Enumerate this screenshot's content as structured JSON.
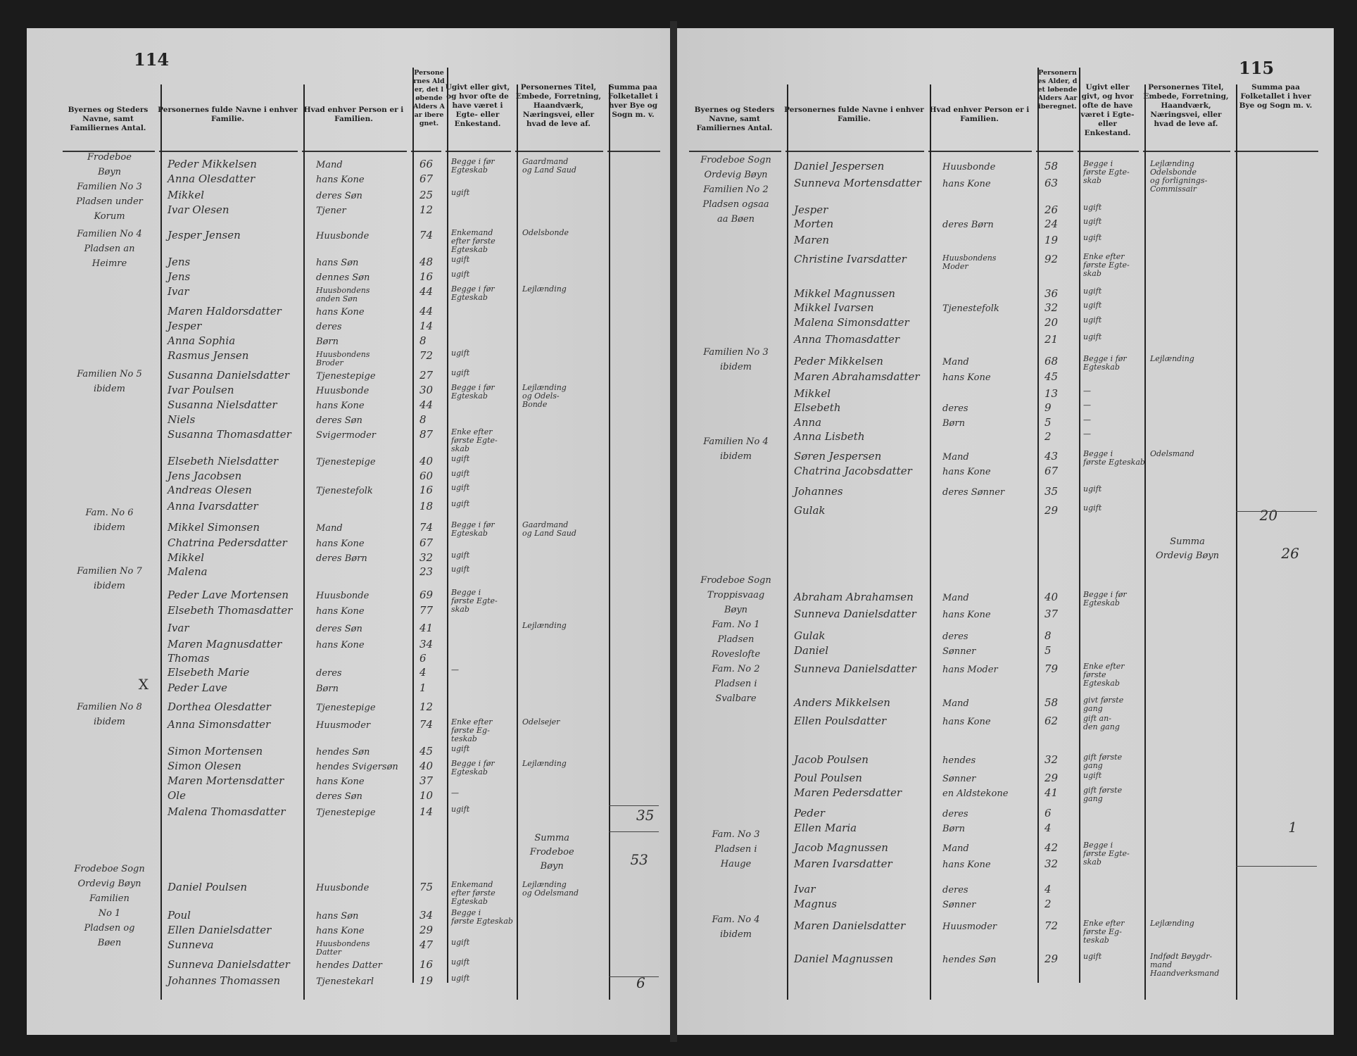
{
  "headers": [
    "Byernes og Steders Navne, samt Familiernes Antal.",
    "Personernes fulde Navne i enhver Familie.",
    "Hvad enhver Person er i Familien.",
    "Personernes Alder, det løbende Alders Aar iberegnet.",
    "Ugivt eller givt, og hvor ofte de have været i Egte- eller Enkestand.",
    "Personernes Titel, Embede, Forretning, Haandværk, Næringsvei, eller hvad de leve af.",
    "Summa paa Folketallet i hver Bye og Sogn m. v."
  ],
  "pages": [
    {
      "page_number": "114",
      "places": [
        "Frodeboe\nBøyn\nFamilien No 3\nPladsen under\nKorum",
        "Familien No 4\nPladsen an\nHeimre",
        "Familien No 5\nibidem",
        "Fam. No 6\nibidem",
        "Familien No 7\nibidem",
        "Familien No 8\nibidem",
        "Frodeboe Sogn\nOrdevig Bøyn\nFamilien\nNo 1\nPladsen og\nBøen"
      ],
      "rows": [
        {
          "name": "Peder Mikkelsen",
          "relation": "Mand",
          "age": "66",
          "status": "Begge i før\nEgteskab",
          "occupation": "Gaardmand\nog Land Saud"
        },
        {
          "name": "Anna Olesdatter",
          "relation": "hans Kone",
          "age": "67",
          "status": "",
          "occupation": ""
        },
        {
          "name": "Mikkel",
          "relation": "deres Søn",
          "age": "25",
          "status": "ugift",
          "occupation": ""
        },
        {
          "name": "Ivar Olesen",
          "relation": "Tjener",
          "age": "12",
          "status": "",
          "occupation": ""
        },
        {
          "name": "Jesper Jensen",
          "relation": "Huusbonde",
          "age": "74",
          "status": "Enkemand\nefter første\nEgteskab",
          "occupation": "Odelsbonde"
        },
        {
          "name": "Jens",
          "relation": "hans Søn",
          "age": "48",
          "status": "ugift",
          "occupation": ""
        },
        {
          "name": "Jens",
          "relation": "dennes Søn",
          "age": "16",
          "status": "ugift",
          "occupation": ""
        },
        {
          "name": "Ivar",
          "relation": "Huusbondens\nanden Søn",
          "age": "44",
          "status": "Begge i før\nEgteskab",
          "occupation": "Lejlænding"
        },
        {
          "name": "Maren Haldorsdatter",
          "relation": "hans Kone",
          "age": "44",
          "status": "",
          "occupation": ""
        },
        {
          "name": "Jesper",
          "relation": "deres",
          "age": "14",
          "status": "",
          "occupation": ""
        },
        {
          "name": "Anna Sophia",
          "relation": "Børn",
          "age": "8",
          "status": "",
          "occupation": ""
        },
        {
          "name": "Rasmus Jensen",
          "relation": "Huusbondens\nBroder",
          "age": "72",
          "status": "ugift",
          "occupation": ""
        },
        {
          "name": "Susanna Danielsdatter",
          "relation": "Tjenestepige",
          "age": "27",
          "status": "ugift",
          "occupation": ""
        },
        {
          "name": "Ivar Poulsen",
          "relation": "Huusbonde",
          "age": "30",
          "status": "Begge i før\nEgteskab",
          "occupation": "Lejlænding\nog Odels-\nBonde"
        },
        {
          "name": "Susanna Nielsdatter",
          "relation": "hans Kone",
          "age": "44",
          "status": "",
          "occupation": ""
        },
        {
          "name": "Niels",
          "relation": "deres Søn",
          "age": "8",
          "status": "",
          "occupation": ""
        },
        {
          "name": "Susanna Thomasdatter",
          "relation": "Svigermoder",
          "age": "87",
          "status": "Enke efter\nførste Egte-\nskab",
          "occupation": ""
        },
        {
          "name": "Elsebeth Nielsdatter",
          "relation": "Tjenestepige",
          "age": "40",
          "status": "ugift",
          "occupation": ""
        },
        {
          "name": "Jens Jacobsen",
          "relation": "",
          "age": "60",
          "status": "ugift",
          "occupation": ""
        },
        {
          "name": "Andreas Olesen",
          "relation": "Tjenestefolk",
          "age": "16",
          "status": "ugift",
          "occupation": ""
        },
        {
          "name": "Anna Ivarsdatter",
          "relation": "",
          "age": "18",
          "status": "ugift",
          "occupation": ""
        },
        {
          "name": "Mikkel Simonsen",
          "relation": "Mand",
          "age": "74",
          "status": "Begge i før\nEgteskab",
          "occupation": "Gaardmand\nog Land Saud"
        },
        {
          "name": "Chatrina Pedersdatter",
          "relation": "hans Kone",
          "age": "67",
          "status": "",
          "occupation": ""
        },
        {
          "name": "Mikkel",
          "relation": "deres Børn",
          "age": "32",
          "status": "ugift",
          "occupation": ""
        },
        {
          "name": "Malena",
          "relation": "",
          "age": "23",
          "status": "ugift",
          "occupation": ""
        },
        {
          "name": "Peder Lave Mortensen",
          "relation": "Huusbonde",
          "age": "69",
          "status": "Begge i\nførste Egte-\nskab",
          "occupation": ""
        },
        {
          "name": "Elsebeth Thomasdatter",
          "relation": "hans Kone",
          "age": "77",
          "status": "",
          "occupation": ""
        },
        {
          "name": "Ivar",
          "relation": "deres Søn",
          "age": "41",
          "status": "",
          "occupation": "Lejlænding"
        },
        {
          "name": "Maren Magnusdatter",
          "relation": "hans Kone",
          "age": "34",
          "status": "",
          "occupation": ""
        },
        {
          "name": "Thomas",
          "relation": "",
          "age": "6",
          "status": "",
          "occupation": ""
        },
        {
          "name": "Elsebeth Marie",
          "relation": "deres",
          "age": "4",
          "status": "—",
          "occupation": ""
        },
        {
          "name": "Peder Lave",
          "relation": "Børn",
          "age": "1",
          "status": "",
          "occupation": ""
        },
        {
          "name": "Dorthea Olesdatter",
          "relation": "Tjenestepige",
          "age": "12",
          "status": "",
          "occupation": ""
        },
        {
          "name": "Anna Simonsdatter",
          "relation": "Huusmoder",
          "age": "74",
          "status": "Enke efter\nførste Eg-\nteskab",
          "occupation": "Odelsejer"
        },
        {
          "name": "Simon Mortensen",
          "relation": "hendes Søn",
          "age": "45",
          "status": "ugift",
          "occupation": ""
        },
        {
          "name": "Simon Olesen",
          "relation": "hendes Svigersøn",
          "age": "40",
          "status": "Begge i før\nEgteskab",
          "occupation": "Lejlænding"
        },
        {
          "name": "Maren Mortensdatter",
          "relation": "hans Kone",
          "age": "37",
          "status": "",
          "occupation": ""
        },
        {
          "name": "Ole",
          "relation": "deres Søn",
          "age": "10",
          "status": "—",
          "occupation": ""
        },
        {
          "name": "Malena Thomasdatter",
          "relation": "Tjenestepige",
          "age": "14",
          "status": "ugift",
          "occupation": ""
        },
        {
          "name": "Daniel Poulsen",
          "relation": "Huusbonde",
          "age": "75",
          "status": "Enkemand\nefter første\nEgteskab",
          "occupation": "Lejlænding\nog Odelsmand"
        },
        {
          "name": "Poul",
          "relation": "hans Søn",
          "age": "34",
          "status": "Begge i\nførste Egteskab",
          "occupation": ""
        },
        {
          "name": "Ellen Danielsdatter",
          "relation": "hans Kone",
          "age": "29",
          "status": "",
          "occupation": ""
        },
        {
          "name": "Sunneva",
          "relation": "Huusbondens\nDatter",
          "age": "47",
          "status": "ugift",
          "occupation": ""
        },
        {
          "name": "Sunneva Danielsdatter",
          "relation": "hendes Datter",
          "age": "16",
          "status": "ugift",
          "occupation": ""
        },
        {
          "name": "Johannes Thomassen",
          "relation": "Tjenestekarl",
          "age": "19",
          "status": "ugift",
          "occupation": ""
        }
      ],
      "totals": [
        "35",
        "Summa\nFrodeboe\nBøyn",
        "53",
        "6"
      ],
      "marks": [
        "X"
      ]
    },
    {
      "page_number": "115",
      "places": [
        "Frodeboe Sogn\nOrdevig Bøyn\nFamilien No 2\nPladsen ogsaa\naa Bøen",
        "Familien No 3\nibidem",
        "Familien No 4\nibidem",
        "Frodeboe Sogn\nTroppisvaag\nBøyn\nFam. No 1\nPladsen\nRoveslofte\nFam. No 2\nPladsen i\nSvalbare",
        "Fam. No 3\nPladsen i\nHauge",
        "Fam. No 4\nibidem"
      ],
      "rows": [
        {
          "name": "Daniel Jespersen",
          "relation": "Huusbonde",
          "age": "58",
          "status": "Begge i\nførste Egte-\nskab",
          "occupation": "Lejlænding\nOdelsbonde\nog forlignings-\nCommissair"
        },
        {
          "name": "Sunneva Mortensdatter",
          "relation": "hans Kone",
          "age": "63",
          "status": "",
          "occupation": ""
        },
        {
          "name": "Jesper",
          "relation": "",
          "age": "26",
          "status": "ugift",
          "occupation": ""
        },
        {
          "name": "Morten",
          "relation": "deres Børn",
          "age": "24",
          "status": "ugift",
          "occupation": ""
        },
        {
          "name": "Maren",
          "relation": "",
          "age": "19",
          "status": "ugift",
          "occupation": ""
        },
        {
          "name": "Christine Ivarsdatter",
          "relation": "Huusbondens\nModer",
          "age": "92",
          "status": "Enke efter\nførste Egte-\nskab",
          "occupation": ""
        },
        {
          "name": "Mikkel Magnussen",
          "relation": "",
          "age": "36",
          "status": "ugift",
          "occupation": ""
        },
        {
          "name": "Mikkel Ivarsen",
          "relation": "Tjenestefolk",
          "age": "32",
          "status": "ugift",
          "occupation": ""
        },
        {
          "name": "Malena Simonsdatter",
          "relation": "",
          "age": "20",
          "status": "ugift",
          "occupation": ""
        },
        {
          "name": "Anna Thomasdatter",
          "relation": "",
          "age": "21",
          "status": "ugift",
          "occupation": ""
        },
        {
          "name": "Peder Mikkelsen",
          "relation": "Mand",
          "age": "68",
          "status": "Begge i før\nEgteskab",
          "occupation": "Lejlænding"
        },
        {
          "name": "Maren Abrahamsdatter",
          "relation": "hans Kone",
          "age": "45",
          "status": "",
          "occupation": ""
        },
        {
          "name": "Mikkel",
          "relation": "",
          "age": "13",
          "status": "—",
          "occupation": ""
        },
        {
          "name": "Elsebeth",
          "relation": "deres",
          "age": "9",
          "status": "—",
          "occupation": ""
        },
        {
          "name": "Anna",
          "relation": "Børn",
          "age": "5",
          "status": "—",
          "occupation": ""
        },
        {
          "name": "Anna Lisbeth",
          "relation": "",
          "age": "2",
          "status": "—",
          "occupation": ""
        },
        {
          "name": "Søren Jespersen",
          "relation": "Mand",
          "age": "43",
          "status": "Begge i\nførste Egteskab",
          "occupation": "Odelsmand"
        },
        {
          "name": "Chatrina Jacobsdatter",
          "relation": "hans Kone",
          "age": "67",
          "status": "",
          "occupation": ""
        },
        {
          "name": "Johannes",
          "relation": "deres Sønner",
          "age": "35",
          "status": "ugift",
          "occupation": ""
        },
        {
          "name": "Gulak",
          "relation": "",
          "age": "29",
          "status": "ugift",
          "occupation": ""
        },
        {
          "name": "Abraham Abrahamsen",
          "relation": "Mand",
          "age": "40",
          "status": "Begge i før\nEgteskab",
          "occupation": ""
        },
        {
          "name": "Sunneva Danielsdatter",
          "relation": "hans Kone",
          "age": "37",
          "status": "",
          "occupation": ""
        },
        {
          "name": "Gulak",
          "relation": "deres",
          "age": "8",
          "status": "",
          "occupation": ""
        },
        {
          "name": "Daniel",
          "relation": "Sønner",
          "age": "5",
          "status": "",
          "occupation": ""
        },
        {
          "name": "Sunneva Danielsdatter",
          "relation": "hans Moder",
          "age": "79",
          "status": "Enke efter\nførste\nEgteskab",
          "occupation": ""
        },
        {
          "name": "Anders Mikkelsen",
          "relation": "Mand",
          "age": "58",
          "status": "givt første\ngang",
          "occupation": ""
        },
        {
          "name": "Ellen Poulsdatter",
          "relation": "hans Kone",
          "age": "62",
          "status": "gift an-\nden gang",
          "occupation": ""
        },
        {
          "name": "Jacob Poulsen",
          "relation": "hendes",
          "age": "32",
          "status": "gift første\ngang",
          "occupation": ""
        },
        {
          "name": "Poul Poulsen",
          "relation": "Sønner",
          "age": "29",
          "status": "ugift",
          "occupation": ""
        },
        {
          "name": "Maren Pedersdatter",
          "relation": "en Aldstekone",
          "age": "41",
          "status": "gift første\ngang",
          "occupation": ""
        },
        {
          "name": "Peder",
          "relation": "deres",
          "age": "6",
          "status": "",
          "occupation": ""
        },
        {
          "name": "Ellen Maria",
          "relation": "Børn",
          "age": "4",
          "status": "",
          "occupation": ""
        },
        {
          "name": "Jacob Magnussen",
          "relation": "Mand",
          "age": "42",
          "status": "Begge i\nførste Egte-\nskab",
          "occupation": ""
        },
        {
          "name": "Maren Ivarsdatter",
          "relation": "hans Kone",
          "age": "32",
          "status": "",
          "occupation": ""
        },
        {
          "name": "Ivar",
          "relation": "deres",
          "age": "4",
          "status": "",
          "occupation": ""
        },
        {
          "name": "Magnus",
          "relation": "Sønner",
          "age": "2",
          "status": "",
          "occupation": ""
        },
        {
          "name": "Maren Danielsdatter",
          "relation": "Huusmoder",
          "age": "72",
          "status": "Enke efter\nførste Eg-\nteskab",
          "occupation": "Lejlænding"
        },
        {
          "name": "Daniel Magnussen",
          "relation": "hendes Søn",
          "age": "29",
          "status": "ugift",
          "occupation": "Indfødt Bøygdr-\nmand\nHaandverksmand"
        }
      ],
      "totals": [
        "20",
        "Summa\nOrdevig Bøyn",
        "26",
        "1"
      ],
      "marks": []
    }
  ]
}
